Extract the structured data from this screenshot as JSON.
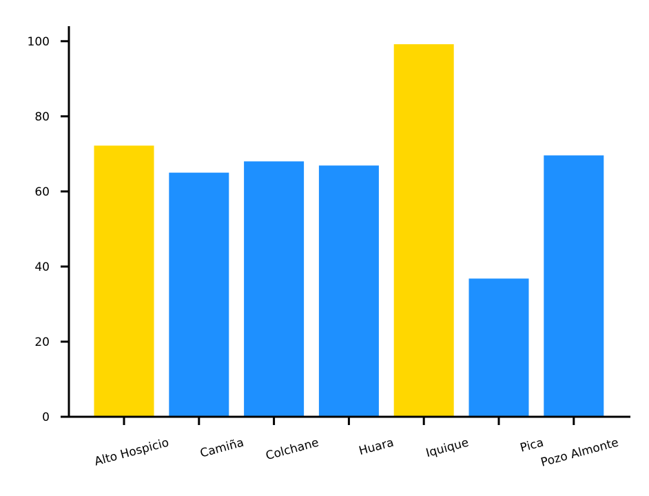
{
  "chart_data": {
    "type": "bar",
    "categories": [
      "Alto Hospicio",
      "Camiña",
      "Colchane",
      "Huara",
      "Iquique",
      "Pica",
      "Pozo Almonte"
    ],
    "values": [
      72.2,
      65.0,
      68.0,
      66.9,
      99.2,
      36.8,
      69.6
    ],
    "highlight": [
      true,
      false,
      false,
      false,
      true,
      false,
      false
    ],
    "colors": {
      "highlight": "#FFD700",
      "default": "#1E90FF"
    },
    "ylim": [
      0,
      104
    ],
    "yticks": [
      0,
      20,
      40,
      60,
      80,
      100
    ],
    "title": "",
    "xlabel": "",
    "ylabel": "",
    "grid": false,
    "x_tick_rotation_deg": 15
  }
}
